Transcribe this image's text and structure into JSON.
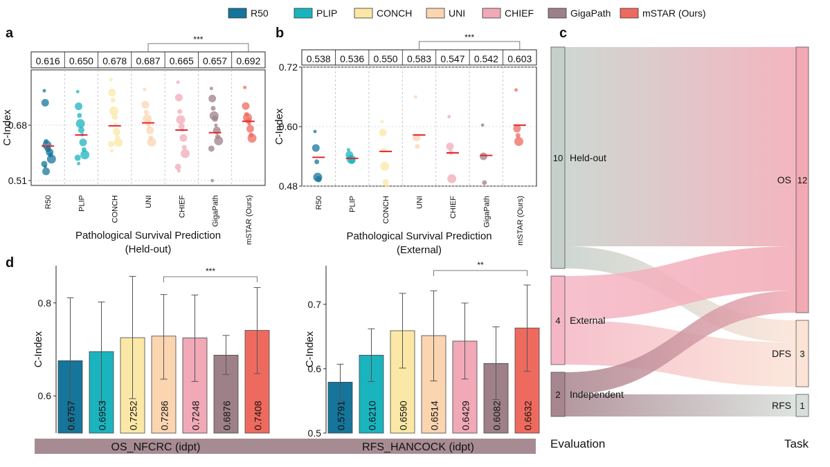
{
  "legend": {
    "items": [
      {
        "name": "R50",
        "color": "#15759a"
      },
      {
        "name": "PLIP",
        "color": "#1ab4bf"
      },
      {
        "name": "CONCH",
        "color": "#fbe8a6"
      },
      {
        "name": "UNI",
        "color": "#fbd4b0"
      },
      {
        "name": "CHIEF",
        "color": "#f1a9b8"
      },
      {
        "name": "GigaPath",
        "color": "#9e8088"
      },
      {
        "name": "mSTAR (Ours)",
        "color": "#ef6a5e"
      }
    ]
  },
  "chart_data": [
    {
      "panel": "a",
      "type": "scatter",
      "ylabel": "C-Index",
      "xlabel": "Pathological Survival Prediction",
      "xlabel2": "(Held-out)",
      "ylim": [
        0.495,
        0.85
      ],
      "yticks": [
        0.51,
        0.68
      ],
      "ytick_labels": [
        "0.51",
        "0.68"
      ],
      "categories": [
        "R50",
        "PLIP",
        "CONCH",
        "UNI",
        "CHIEF",
        "GigaPath",
        "mSTAR (Ours)"
      ],
      "means": [
        0.616,
        0.65,
        0.678,
        0.687,
        0.665,
        0.657,
        0.692
      ],
      "mean_labels": [
        "0.616",
        "0.650",
        "0.678",
        "0.687",
        "0.665",
        "0.657",
        "0.692"
      ],
      "significance": {
        "from": 3,
        "to": 6,
        "label": "***"
      },
      "points": [
        [
          0.786,
          0.749,
          0.63,
          0.619,
          0.607,
          0.603,
          0.597,
          0.589,
          0.576,
          0.561,
          0.553,
          0.538
        ],
        [
          0.783,
          0.738,
          0.71,
          0.685,
          0.665,
          0.651,
          0.627,
          0.605,
          0.589,
          0.58,
          0.562
        ],
        [
          0.82,
          0.78,
          0.757,
          0.724,
          0.706,
          0.684,
          0.66,
          0.643,
          0.627,
          0.622,
          0.601
        ],
        [
          0.79,
          0.743,
          0.72,
          0.7,
          0.689,
          0.676,
          0.664,
          0.641,
          0.628
        ],
        [
          0.812,
          0.765,
          0.722,
          0.697,
          0.676,
          0.665,
          0.641,
          0.612,
          0.593,
          0.552,
          0.54
        ],
        [
          0.793,
          0.762,
          0.732,
          0.709,
          0.7,
          0.68,
          0.664,
          0.645,
          0.632,
          0.608,
          0.51
        ],
        [
          0.796,
          0.739,
          0.713,
          0.703,
          0.694,
          0.684,
          0.669,
          0.65,
          0.64
        ]
      ]
    },
    {
      "panel": "b",
      "type": "scatter",
      "ylabel": "C-Index",
      "xlabel": "Pathological Survival Prediction",
      "xlabel2": "(External)",
      "ylim": [
        0.48,
        0.72
      ],
      "yticks": [
        0.48,
        0.6,
        0.72
      ],
      "ytick_labels": [
        "0.48",
        "0.60",
        "0.72"
      ],
      "categories": [
        "R50",
        "PLIP",
        "CONCH",
        "UNI",
        "CHIEF",
        "GigaPath",
        "mSTAR (Ours)"
      ],
      "means": [
        0.538,
        0.536,
        0.55,
        0.583,
        0.547,
        0.542,
        0.603
      ],
      "mean_labels": [
        "0.538",
        "0.536",
        "0.550",
        "0.583",
        "0.547",
        "0.542",
        "0.603"
      ],
      "significance": {
        "from": 3,
        "to": 6,
        "label": "***"
      },
      "points": [
        [
          0.59,
          0.557,
          0.529,
          0.498,
          0.494
        ],
        [
          0.553,
          0.543,
          0.536,
          0.534,
          0.531
        ],
        [
          0.61,
          0.588,
          0.552,
          0.52,
          0.488,
          0.481
        ],
        [
          0.66,
          0.578,
          0.56
        ],
        [
          0.62,
          0.56,
          0.548,
          0.495
        ],
        [
          0.603,
          0.54,
          0.487
        ],
        [
          0.674,
          0.596,
          0.582,
          0.57
        ]
      ]
    },
    {
      "panel": "d1",
      "type": "bar",
      "ylabel": "C-Index",
      "title": "OS_NFCRC (idpt)",
      "ylim": [
        0.52,
        0.88
      ],
      "yticks": [
        0.6,
        0.8
      ],
      "ytick_labels": [
        "0.6",
        "0.8"
      ],
      "categories": [
        "R50",
        "PLIP",
        "CONCH",
        "UNI",
        "CHIEF",
        "GigaPath",
        "mSTAR (Ours)"
      ],
      "values": [
        0.6757,
        0.6953,
        0.7252,
        0.7286,
        0.7248,
        0.6876,
        0.7408
      ],
      "value_labels": [
        "0.6757",
        "0.6953",
        "0.7252",
        "0.7286",
        "0.7248",
        "0.6876",
        "0.7408"
      ],
      "error_low": [
        0.53,
        0.588,
        0.594,
        0.636,
        0.631,
        0.646,
        0.648
      ],
      "error_high": [
        0.811,
        0.802,
        0.857,
        0.818,
        0.817,
        0.73,
        0.833
      ],
      "significance": {
        "from": 3,
        "to": 6,
        "label": "***"
      }
    },
    {
      "panel": "d2",
      "type": "bar",
      "ylabel": "C-Index",
      "title": "RFS_HANCOCK (idpt)",
      "ylim": [
        0.5,
        0.76
      ],
      "yticks": [
        0.5,
        0.6,
        0.7
      ],
      "ytick_labels": [
        "0.5",
        "0.6",
        "0.7"
      ],
      "categories": [
        "R50",
        "PLIP",
        "CONCH",
        "UNI",
        "CHIEF",
        "GigaPath",
        "mSTAR (Ours)"
      ],
      "values": [
        0.5791,
        0.621,
        0.659,
        0.6514,
        0.6429,
        0.6082,
        0.6632
      ],
      "value_labels": [
        "0.5791",
        "0.6210",
        "0.6590",
        "0.6514",
        "0.6429",
        "0.6082",
        "0.6632"
      ],
      "error_low": [
        0.551,
        0.58,
        0.601,
        0.581,
        0.584,
        0.552,
        0.596
      ],
      "error_high": [
        0.607,
        0.662,
        0.717,
        0.721,
        0.702,
        0.665,
        0.73
      ],
      "significance": {
        "from": 3,
        "to": 6,
        "label": "**"
      }
    },
    {
      "panel": "c",
      "type": "sankey",
      "left_title": "Evaluation",
      "right_title": "Task",
      "sources": [
        {
          "name": "Held-out",
          "count": 10,
          "color": "#c6d0cb"
        },
        {
          "name": "External",
          "count": 4,
          "color": "#f4b6c4"
        },
        {
          "name": "Independent",
          "count": 2,
          "color": "#a8868f"
        }
      ],
      "targets": [
        {
          "name": "OS",
          "count": 12,
          "color": "#f2a9b4"
        },
        {
          "name": "DFS",
          "count": 3,
          "color": "#fbe3d6"
        },
        {
          "name": "RFS",
          "count": 1,
          "color": "#d8dfdb"
        }
      ],
      "links": [
        {
          "source": "Held-out",
          "target": "OS",
          "value": 9
        },
        {
          "source": "Held-out",
          "target": "DFS",
          "value": 1
        },
        {
          "source": "External",
          "target": "OS",
          "value": 2
        },
        {
          "source": "External",
          "target": "DFS",
          "value": 2
        },
        {
          "source": "Independent",
          "target": "OS",
          "value": 1
        },
        {
          "source": "Independent",
          "target": "RFS",
          "value": 1
        }
      ]
    }
  ],
  "panel_labels": {
    "a": "a",
    "b": "b",
    "c": "c",
    "d": "d"
  }
}
